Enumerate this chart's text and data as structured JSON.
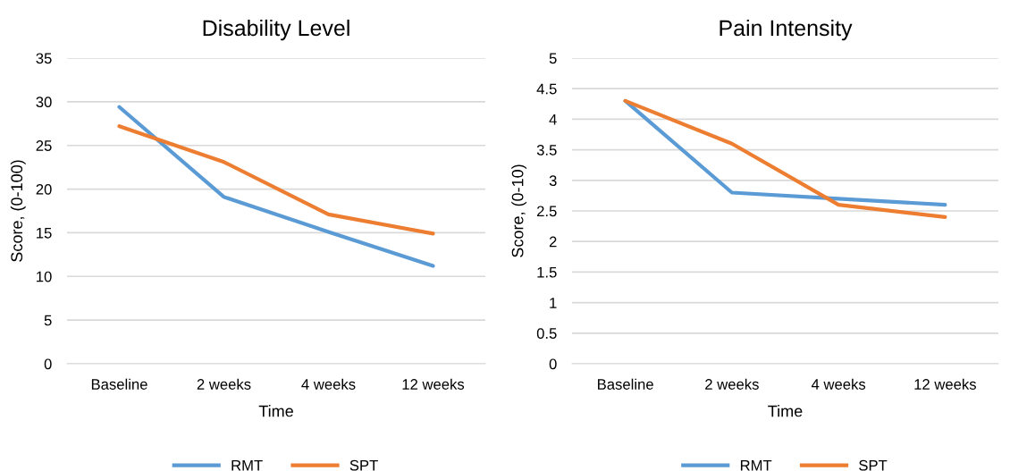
{
  "chart_data": [
    {
      "type": "line",
      "title": "Disability Level",
      "xlabel": "Time",
      "ylabel": "Score, (0-100)",
      "categories": [
        "Baseline",
        "2 weeks",
        "4 weeks",
        "12 weeks"
      ],
      "series": [
        {
          "name": "RMT",
          "color": "#5b9bd5",
          "values": [
            29.4,
            19.1,
            15.1,
            11.2
          ]
        },
        {
          "name": "SPT",
          "color": "#ed7d31",
          "values": [
            27.2,
            23.1,
            17.1,
            14.9
          ]
        }
      ],
      "ylim": [
        0,
        35
      ],
      "yticks": [
        0,
        5,
        10,
        15,
        20,
        25,
        30,
        35
      ],
      "grid": "y",
      "legend": "bottom",
      "marker": "none",
      "line_style": "solid"
    },
    {
      "type": "line",
      "title": "Pain Intensity",
      "xlabel": "Time",
      "ylabel": "Score, (0-10)",
      "categories": [
        "Baseline",
        "2 weeks",
        "4 weeks",
        "12 weeks"
      ],
      "series": [
        {
          "name": "RMT",
          "color": "#5b9bd5",
          "values": [
            4.3,
            2.8,
            2.7,
            2.6
          ]
        },
        {
          "name": "SPT",
          "color": "#ed7d31",
          "values": [
            4.3,
            3.6,
            2.6,
            2.4
          ]
        }
      ],
      "ylim": [
        0,
        5
      ],
      "yticks": [
        0,
        0.5,
        1,
        1.5,
        2,
        2.5,
        3,
        3.5,
        4,
        4.5,
        5
      ],
      "grid": "y",
      "legend": "bottom",
      "marker": "none",
      "line_style": "solid"
    }
  ]
}
